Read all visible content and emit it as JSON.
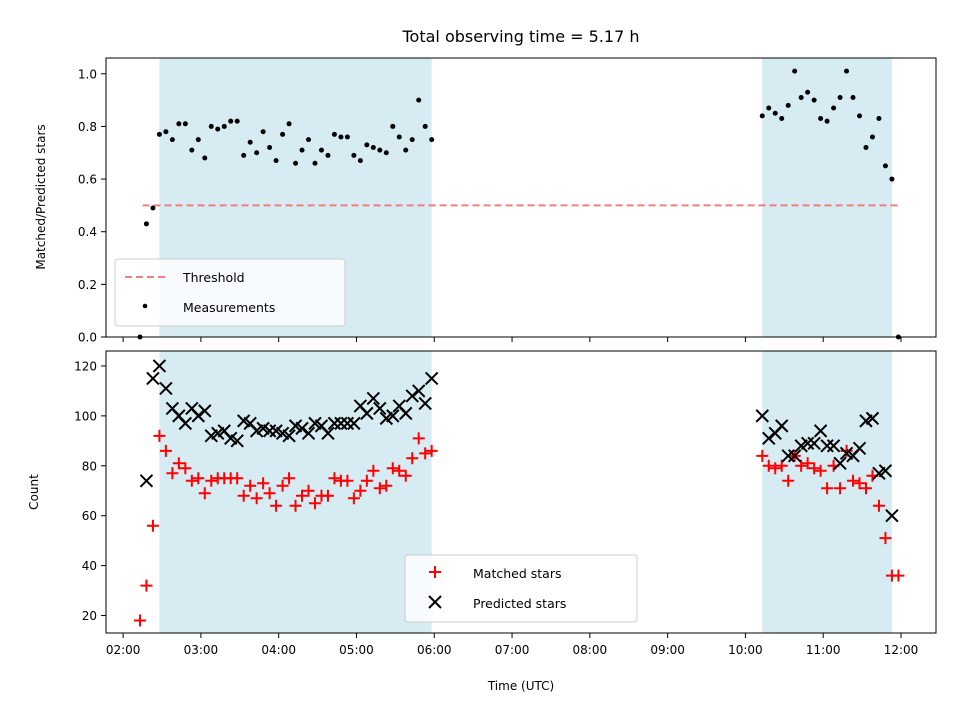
{
  "chart_data": [
    {
      "type": "scatter",
      "title": "Total observing time = 5.17 h",
      "xlabel": "",
      "ylabel": "Matched/Predicted stars",
      "ylim": [
        0,
        1.06
      ],
      "xlim": [
        "02:00",
        "12:00"
      ],
      "time_range_hours": [
        1.78,
        12.45
      ],
      "yticks": [
        "0.0",
        "0.2",
        "0.4",
        "0.6",
        "0.8",
        "1.0"
      ],
      "xticks": [
        "02:00",
        "03:00",
        "04:00",
        "05:00",
        "06:00",
        "07:00",
        "08:00",
        "09:00",
        "10:00",
        "11:00",
        "12:00"
      ],
      "grid": false,
      "legend": "lower-left",
      "observing_windows": [
        [
          "02:28",
          "05:58"
        ],
        [
          "10:13",
          "11:53"
        ]
      ],
      "threshold": {
        "name": "Threshold",
        "value": 0.5,
        "x_range": [
          "02:15",
          "11:58"
        ],
        "color": "#f08080"
      },
      "series": [
        {
          "name": "Measurements",
          "color": "#000000",
          "x": [
            "02:13",
            "02:18",
            "02:23",
            "02:28",
            "02:33",
            "02:38",
            "02:43",
            "02:48",
            "02:53",
            "02:58",
            "03:03",
            "03:08",
            "03:13",
            "03:18",
            "03:23",
            "03:28",
            "03:33",
            "03:38",
            "03:43",
            "03:48",
            "03:53",
            "03:58",
            "04:03",
            "04:08",
            "04:13",
            "04:18",
            "04:23",
            "04:28",
            "04:33",
            "04:38",
            "04:43",
            "04:48",
            "04:53",
            "04:58",
            "05:03",
            "05:08",
            "05:13",
            "05:18",
            "05:23",
            "05:28",
            "05:33",
            "05:38",
            "05:43",
            "05:48",
            "05:53",
            "05:58",
            "10:13",
            "10:18",
            "10:23",
            "10:28",
            "10:33",
            "10:38",
            "10:43",
            "10:48",
            "10:53",
            "10:58",
            "11:03",
            "11:08",
            "11:13",
            "11:18",
            "11:23",
            "11:28",
            "11:33",
            "11:38",
            "11:43",
            "11:48",
            "11:53",
            "11:58"
          ],
          "y": [
            0.0,
            0.43,
            0.49,
            0.77,
            0.78,
            0.75,
            0.81,
            0.81,
            0.71,
            0.75,
            0.68,
            0.8,
            0.79,
            0.8,
            0.82,
            0.82,
            0.69,
            0.74,
            0.7,
            0.78,
            0.72,
            0.67,
            0.77,
            0.81,
            0.66,
            0.71,
            0.75,
            0.66,
            0.71,
            0.69,
            0.77,
            0.76,
            0.76,
            0.69,
            0.67,
            0.73,
            0.72,
            0.71,
            0.7,
            0.8,
            0.76,
            0.71,
            0.75,
            0.9,
            0.8,
            0.75,
            0.84,
            0.87,
            0.85,
            0.83,
            0.88,
            1.01,
            0.91,
            0.93,
            0.9,
            0.83,
            0.82,
            0.87,
            0.91,
            1.01,
            0.91,
            0.84,
            0.72,
            0.76,
            0.83,
            0.65,
            0.6,
            0.0
          ]
        }
      ]
    },
    {
      "type": "scatter",
      "title": "",
      "xlabel": "Time (UTC)",
      "ylabel": "Count",
      "ylim": [
        13,
        126
      ],
      "xlim": [
        "02:00",
        "12:00"
      ],
      "time_range_hours": [
        1.78,
        12.45
      ],
      "yticks": [
        "20",
        "40",
        "60",
        "80",
        "100",
        "120"
      ],
      "xticks": [
        "02:00",
        "03:00",
        "04:00",
        "05:00",
        "06:00",
        "07:00",
        "08:00",
        "09:00",
        "10:00",
        "11:00",
        "12:00"
      ],
      "grid": false,
      "legend": "lower-center",
      "observing_windows": [
        [
          "02:28",
          "05:58"
        ],
        [
          "10:13",
          "11:53"
        ]
      ],
      "series": [
        {
          "name": "Matched stars",
          "color": "#ff0000",
          "marker": "plus",
          "x": [
            "02:13",
            "02:18",
            "02:23",
            "02:28",
            "02:33",
            "02:38",
            "02:43",
            "02:48",
            "02:53",
            "02:58",
            "03:03",
            "03:08",
            "03:13",
            "03:18",
            "03:23",
            "03:28",
            "03:33",
            "03:38",
            "03:43",
            "03:48",
            "03:53",
            "03:58",
            "04:03",
            "04:08",
            "04:13",
            "04:18",
            "04:23",
            "04:28",
            "04:33",
            "04:38",
            "04:43",
            "04:48",
            "04:53",
            "04:58",
            "05:03",
            "05:08",
            "05:13",
            "05:18",
            "05:23",
            "05:28",
            "05:33",
            "05:38",
            "05:43",
            "05:48",
            "05:53",
            "05:58",
            "10:13",
            "10:18",
            "10:23",
            "10:28",
            "10:33",
            "10:38",
            "10:43",
            "10:48",
            "10:53",
            "10:58",
            "11:03",
            "11:08",
            "11:13",
            "11:18",
            "11:23",
            "11:28",
            "11:33",
            "11:38",
            "11:43",
            "11:48",
            "11:53",
            "11:58"
          ],
          "y": [
            18,
            32,
            56,
            92,
            86,
            77,
            81,
            79,
            74,
            75,
            69,
            74,
            75,
            75,
            75,
            75,
            68,
            72,
            67,
            73,
            69,
            64,
            72,
            75,
            64,
            68,
            70,
            65,
            68,
            68,
            75,
            74,
            74,
            67,
            70,
            74,
            78,
            71,
            72,
            79,
            78,
            76,
            83,
            91,
            85,
            86,
            84,
            80,
            79,
            80,
            74,
            84,
            80,
            81,
            79,
            78,
            71,
            80,
            71,
            86,
            74,
            73,
            71,
            76,
            64,
            51,
            36,
            36
          ]
        },
        {
          "name": "Predicted stars",
          "color": "#000000",
          "marker": "x",
          "x": [
            "02:18",
            "02:23",
            "02:28",
            "02:33",
            "02:38",
            "02:43",
            "02:48",
            "02:53",
            "02:58",
            "03:03",
            "03:08",
            "03:13",
            "03:18",
            "03:23",
            "03:28",
            "03:33",
            "03:38",
            "03:43",
            "03:48",
            "03:53",
            "03:58",
            "04:03",
            "04:08",
            "04:13",
            "04:18",
            "04:23",
            "04:28",
            "04:33",
            "04:38",
            "04:43",
            "04:48",
            "04:53",
            "04:58",
            "05:03",
            "05:08",
            "05:13",
            "05:18",
            "05:23",
            "05:28",
            "05:33",
            "05:38",
            "05:43",
            "05:48",
            "05:53",
            "05:58",
            "10:13",
            "10:18",
            "10:23",
            "10:28",
            "10:33",
            "10:38",
            "10:43",
            "10:48",
            "10:53",
            "10:58",
            "11:03",
            "11:08",
            "11:13",
            "11:18",
            "11:23",
            "11:28",
            "11:33",
            "11:38",
            "11:43",
            "11:48",
            "11:53"
          ],
          "y": [
            74,
            115,
            120,
            111,
            103,
            100,
            97,
            103,
            100,
            102,
            92,
            93,
            94,
            91,
            90,
            98,
            97,
            94,
            95,
            94,
            94,
            93,
            92,
            96,
            95,
            93,
            97,
            96,
            93,
            97,
            97,
            97,
            97,
            104,
            101,
            107,
            103,
            99,
            100,
            104,
            101,
            108,
            110,
            105,
            115,
            100,
            91,
            93,
            96,
            84,
            84,
            88,
            89,
            89,
            94,
            88,
            88,
            81,
            85,
            84,
            87,
            98,
            99,
            77,
            78,
            60
          ]
        }
      ]
    }
  ]
}
